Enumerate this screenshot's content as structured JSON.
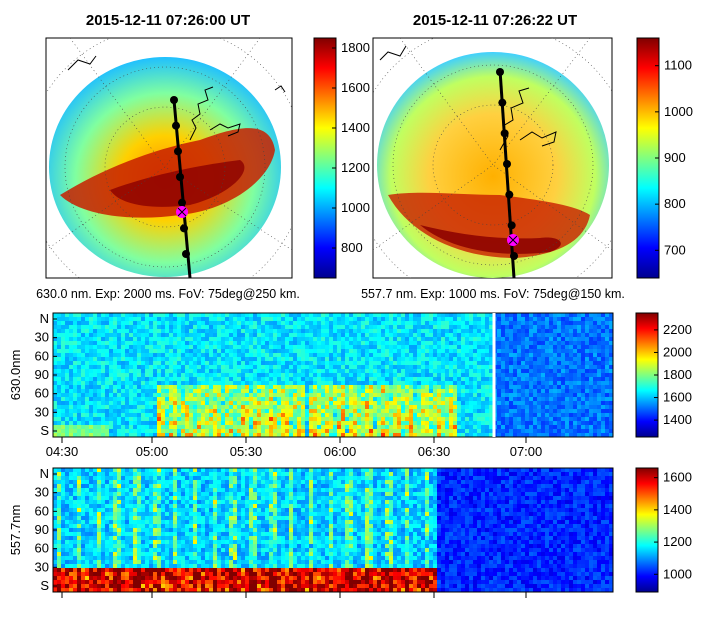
{
  "chart_data": [
    {
      "type": "heatmap",
      "panel": "all-sky image",
      "title": "2015-12-11 07:26:00 UT",
      "caption": "630.0 nm. Exp: 2000 ms. FoV: 75deg@250 km.",
      "colorbar": {
        "ticks": [
          800,
          1000,
          1200,
          1400,
          1600,
          1800
        ],
        "range": [
          650,
          1850
        ]
      },
      "track_points": 7,
      "marker": "magenta cross"
    },
    {
      "type": "heatmap",
      "panel": "all-sky image",
      "title": "2015-12-11 07:26:22 UT",
      "caption": "557.7 nm. Exp: 1000 ms. FoV: 75deg@150 km.",
      "colorbar": {
        "ticks": [
          700,
          800,
          900,
          1000,
          1100
        ],
        "range": [
          640,
          1160
        ]
      },
      "track_points": 7,
      "marker": "magenta cross"
    },
    {
      "type": "heatmap",
      "panel": "keogram",
      "ylabel": "630.0nm",
      "y_ticks": [
        "N",
        "30",
        "60",
        "90",
        "60",
        "30",
        "S"
      ],
      "x_ticks": [
        "04:30",
        "05:00",
        "05:30",
        "06:00",
        "06:30",
        "07:00"
      ],
      "colorbar": {
        "ticks": [
          1400,
          1600,
          1800,
          2000,
          2200
        ],
        "range": [
          1250,
          2350
        ]
      },
      "current_time": "07:26"
    },
    {
      "type": "heatmap",
      "panel": "keogram",
      "ylabel": "557.7nm",
      "y_ticks": [
        "N",
        "30",
        "60",
        "90",
        "60",
        "30",
        "S"
      ],
      "colorbar": {
        "ticks": [
          1000,
          1200,
          1400,
          1600
        ],
        "range": [
          890,
          1660
        ]
      }
    }
  ]
}
